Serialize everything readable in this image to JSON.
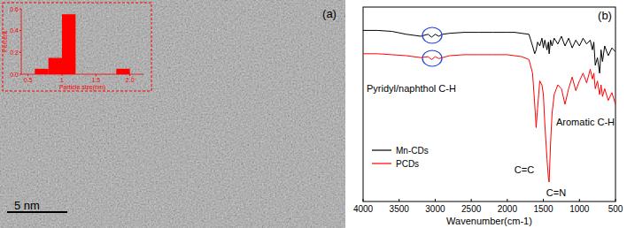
{
  "image": {
    "panel_label": "(a)",
    "scale_bar": "5 nm"
  },
  "chart_data": [
    {
      "type": "histogram",
      "x_label": "Particle size(nm)",
      "y_label": "Percent",
      "color": "#ff0000",
      "bins": [
        0.4,
        0.6,
        0.8,
        1.0,
        1.2,
        1.4,
        1.6,
        1.8,
        2.0,
        2.2
      ],
      "values": [
        0,
        0.05,
        0.15,
        0.55,
        0,
        0,
        0,
        0.05,
        0
      ],
      "xlim": [
        0.4,
        2.2
      ],
      "xticks": [
        0.5,
        1,
        1.5,
        {
          "value": 2,
          "label": "2.0"
        }
      ],
      "ylim": [
        0,
        0.6
      ],
      "yticks": [
        {
          "value": 0,
          "label": "0.0"
        },
        0.2,
        0.4,
        0.6
      ]
    },
    {
      "type": "line",
      "title": "(b)",
      "x_label": "Wavenumber(cm-1)",
      "tick_labels": "x",
      "legend": "lower left",
      "x": [
        4000,
        3800,
        3600,
        3400,
        3200,
        3100,
        3050,
        3000,
        2950,
        2900,
        2800,
        2600,
        2400,
        2200,
        2000,
        1900,
        1800,
        1700,
        1650,
        1620,
        1600,
        1580,
        1550,
        1520,
        1500,
        1480,
        1450,
        1430,
        1420,
        1400,
        1380,
        1350,
        1300,
        1250,
        1200,
        1150,
        1100,
        1050,
        1000,
        950,
        900,
        850,
        820,
        800,
        780,
        750,
        720,
        700,
        680,
        650,
        600,
        550,
        500
      ],
      "series": [
        {
          "name": "Mn-CDs",
          "color": "#000000",
          "values": [
            88,
            88,
            87.5,
            86,
            85,
            86,
            84.5,
            86,
            85,
            86,
            86.5,
            87,
            87,
            87,
            87,
            87,
            86.5,
            86,
            80,
            76,
            78,
            82,
            80,
            84,
            79,
            83,
            78,
            82,
            76,
            83,
            80,
            84,
            81,
            85,
            80,
            84,
            79,
            83,
            80,
            84,
            81,
            83,
            78,
            82,
            70,
            74,
            66,
            78,
            72,
            80,
            75,
            79,
            77
          ]
        },
        {
          "name": "PCDs",
          "color": "#ff0000",
          "values": [
            76,
            76,
            75.5,
            75,
            74,
            74.5,
            73,
            74.5,
            73.5,
            74,
            75,
            75.5,
            75.5,
            75.5,
            75.5,
            75,
            74.5,
            73,
            66,
            50,
            38,
            48,
            62,
            60,
            55,
            40,
            22,
            12,
            10,
            30,
            45,
            55,
            60,
            58,
            50,
            58,
            64,
            57,
            62,
            66,
            61,
            68,
            63,
            66,
            58,
            62,
            55,
            60,
            54,
            58,
            52,
            56,
            50
          ]
        }
      ],
      "xlim": [
        4000,
        500
      ],
      "xticks": [
        4000,
        3500,
        3000,
        2500,
        2000,
        1500,
        1000,
        500
      ],
      "ylim": [
        0,
        100
      ],
      "annotations": [
        "Pyridyl/naphthol C-H",
        "C=C",
        "Aromatic C-H",
        "C=N"
      ]
    }
  ]
}
